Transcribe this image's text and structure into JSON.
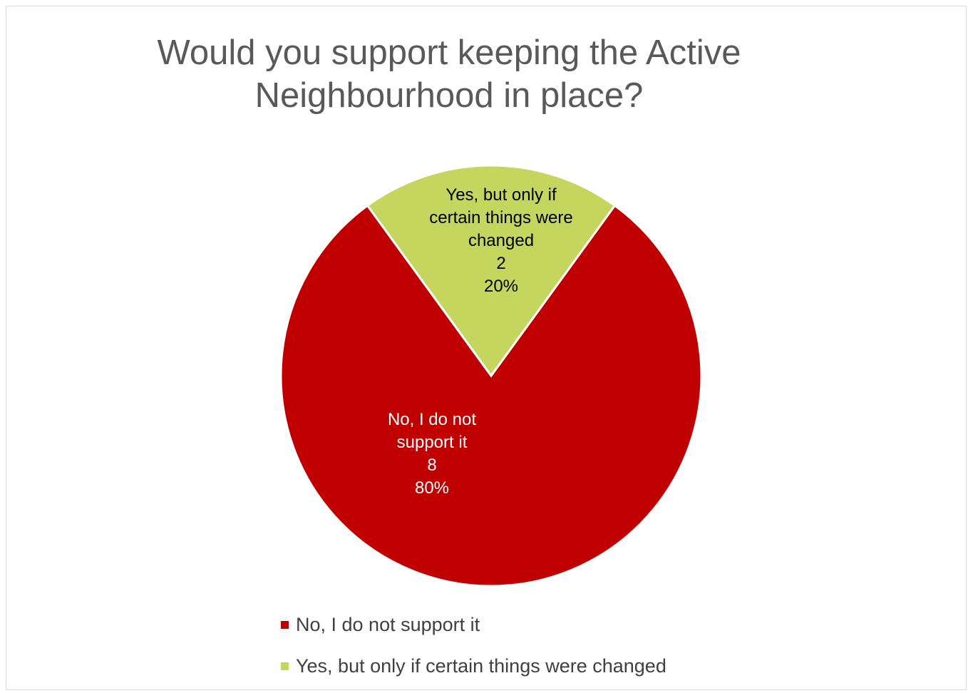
{
  "chart_data": {
    "type": "pie",
    "title_lines": [
      "Would you support keeping the Active",
      "Neighbourhood in place?"
    ],
    "slices": [
      {
        "name": "No, I do not support it",
        "value": 8,
        "percent": "80%",
        "color": "#C00000",
        "label_color": "#ffffff",
        "label_lines": [
          "No, I do not",
          "support it",
          "8",
          "80%"
        ]
      },
      {
        "name": "Yes, but only if certain things were changed",
        "value": 2,
        "percent": "20%",
        "color": "#C4D65E",
        "label_color": "#000000",
        "label_lines": [
          "Yes, but only if",
          "certain things were",
          "changed",
          "2",
          "20%"
        ]
      }
    ],
    "legend_position": "bottom"
  }
}
